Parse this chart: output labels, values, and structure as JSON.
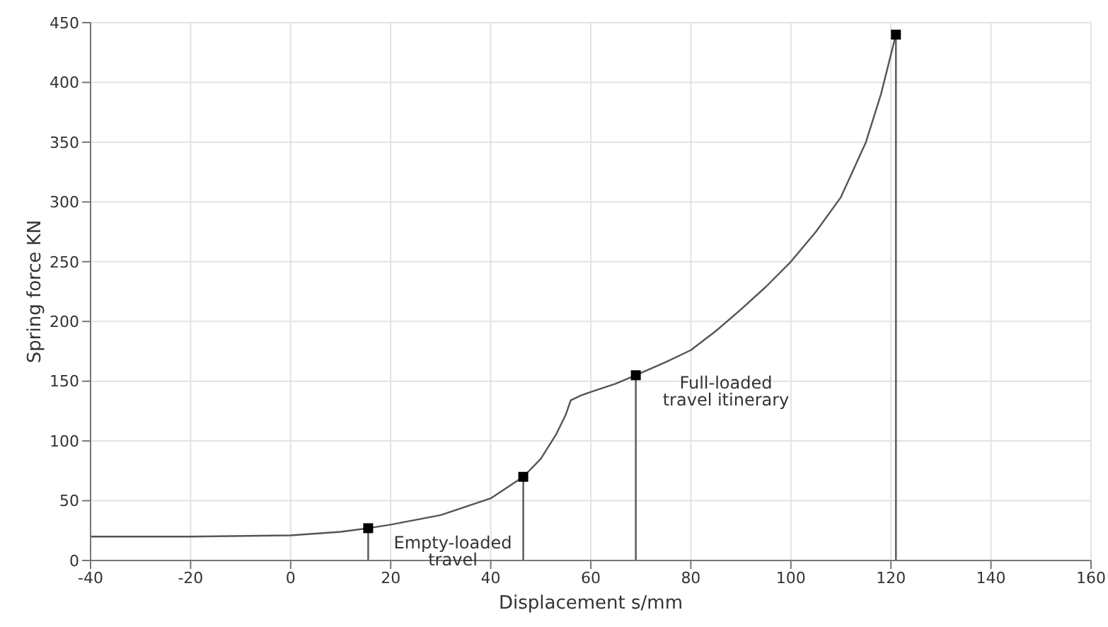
{
  "chart_data": {
    "type": "line",
    "xlabel": "Displacement s/mm",
    "ylabel": "Spring force KN",
    "xlim": [
      -40,
      160
    ],
    "xticks": [
      -40,
      -20,
      0,
      20,
      40,
      60,
      80,
      100,
      120,
      140,
      160
    ],
    "ylim": [
      0,
      450
    ],
    "yticks": [
      0,
      50,
      100,
      150,
      200,
      250,
      300,
      350,
      400,
      450
    ],
    "grid": true,
    "series": [
      {
        "color": "#555555",
        "x": [
          -40,
          -20,
          0,
          10,
          15.5,
          20,
          30,
          40,
          46.5,
          50,
          53,
          55,
          56,
          58,
          60,
          65,
          69,
          75,
          80,
          85,
          90,
          95,
          100,
          105,
          110,
          115,
          118,
          121
        ],
        "values": [
          20,
          20,
          21,
          24,
          27,
          30,
          38,
          52,
          70,
          85,
          105,
          122,
          134,
          138,
          141,
          148,
          155,
          166,
          176,
          192,
          210,
          229,
          250,
          275,
          304,
          350,
          390,
          440
        ]
      },
      {
        "color": "#555555",
        "x": [
          15.5,
          15.5
        ],
        "values": [
          0,
          27
        ]
      },
      {
        "color": "#555555",
        "x": [
          46.5,
          46.5
        ],
        "values": [
          0,
          70
        ]
      },
      {
        "color": "#555555",
        "x": [
          69,
          69
        ],
        "values": [
          0,
          155
        ]
      },
      {
        "color": "#555555",
        "x": [
          121,
          121
        ],
        "values": [
          0,
          440
        ]
      },
      {
        "type": "scatter",
        "color": "#000000",
        "marker": "square",
        "x": [
          15.5,
          46.5,
          69,
          121
        ],
        "values": [
          27,
          70,
          155,
          440
        ]
      }
    ],
    "annotations": [
      "Empty-loaded travel",
      "Full-loaded travel itinerary"
    ]
  }
}
